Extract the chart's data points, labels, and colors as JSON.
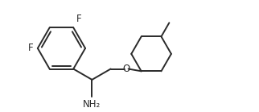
{
  "bg_color": "#ffffff",
  "line_color": "#2a2a2a",
  "text_color": "#2a2a2a",
  "line_width": 1.4,
  "font_size": 8.5,
  "figsize": [
    3.22,
    1.39
  ],
  "dpi": 100,
  "xlim": [
    0.2,
    9.8
  ],
  "ylim": [
    0.3,
    5.0
  ]
}
